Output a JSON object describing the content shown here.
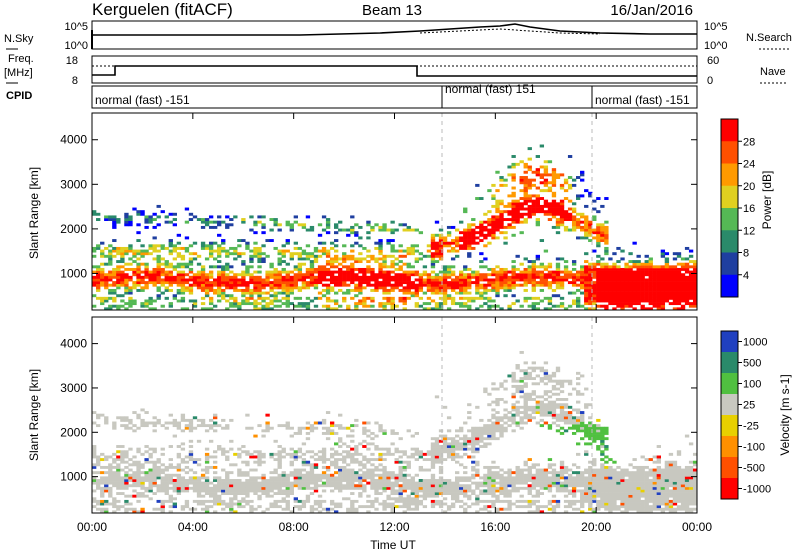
{
  "header": {
    "station": "Kerguelen (fitACF)",
    "beam": "Beam 13",
    "date": "16/Jan/2016"
  },
  "strip_labels": {
    "nsky": "N.Sky",
    "nsearch": "N.Search",
    "freq_top": "Freq.",
    "freq_unit": "[MHz]",
    "nave": "Nave",
    "cpid": "CPID"
  },
  "nsky_ticks": [
    "10^5",
    "10^0"
  ],
  "nsearch_ticks": [
    "10^5",
    "10^0"
  ],
  "freq_ticks": [
    "18",
    "8"
  ],
  "nave_ticks": [
    "60",
    "0"
  ],
  "cpid_segments": [
    {
      "label": "normal (fast) -151",
      "start_hour": 0
    },
    {
      "label": "normal (fast) 151",
      "start_hour": 14
    },
    {
      "label": "normal (fast) -151",
      "start_hour": 20
    }
  ],
  "chart_data": [
    {
      "type": "heatmap",
      "quantity": "Power",
      "ylabel": "Slant Range [km]",
      "ylim": [
        180,
        4600
      ],
      "yticks": [
        "1000",
        "2000",
        "3000",
        "4000"
      ],
      "colorbar_label": "Power [dB]",
      "colorbar_ticks": [
        "4",
        "8",
        "12",
        "16",
        "20",
        "24",
        "28"
      ],
      "colors": [
        "#0000ff",
        "#1f3fa0",
        "#2a8a6a",
        "#55b855",
        "#e0d020",
        "#ff9a00",
        "#ff5000",
        "#ff0000"
      ]
    },
    {
      "type": "heatmap",
      "quantity": "Velocity",
      "ylabel": "Slant Range [km]",
      "ylim": [
        180,
        4600
      ],
      "yticks": [
        "1000",
        "2000",
        "3000",
        "4000"
      ],
      "colorbar_label": "Velocity [m s-1]",
      "colorbar_ticks": [
        "1000",
        "500",
        "100",
        "25",
        "-25",
        "-100",
        "-500",
        "-1000"
      ],
      "colors": [
        "#2040c0",
        "#2a8a6a",
        "#50c040",
        "#c8c8c0",
        "#e8d000",
        "#ff9000",
        "#ff5000",
        "#ff0000"
      ],
      "xlabel": "Time UT",
      "xticks": [
        "00:00",
        "04:00",
        "08:00",
        "12:00",
        "16:00",
        "20:00",
        "00:00"
      ]
    }
  ]
}
